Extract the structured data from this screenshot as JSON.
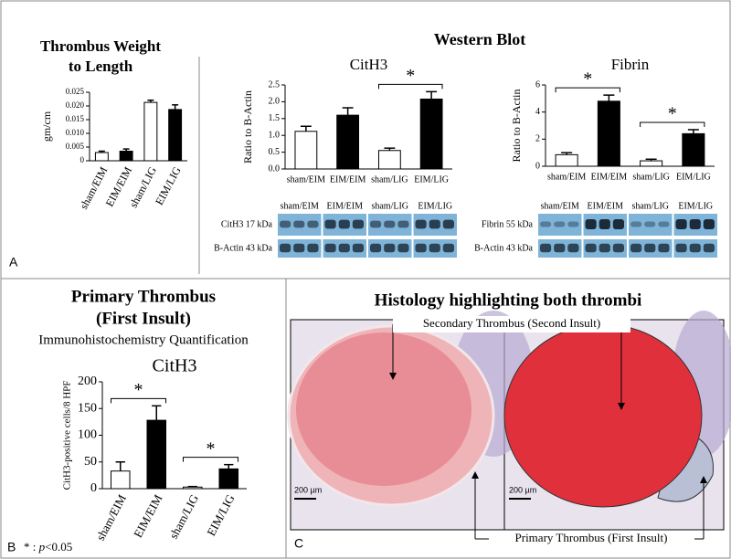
{
  "figure": {
    "panel_a_label": "A",
    "panel_b_label": "B",
    "panel_c_label": "C",
    "western_title": "Western Blot",
    "panel_b_title_lines": [
      "Primary Thrombus",
      "(First Insult)"
    ],
    "panel_b_subtitle": "Immunohistochemistry Quantification",
    "footnote": {
      "star": "* :",
      "p": "p",
      "rest": "<0.05"
    },
    "blots": [
      {
        "lanes": [
          "sham/EIM",
          "EIM/EIM",
          "sham/LIG",
          "EIM/LIG"
        ],
        "rows": [
          "CitH3 17 kDa",
          "B-Actin 43 kDa"
        ]
      },
      {
        "lanes": [
          "sham/EIM",
          "EIM/EIM",
          "sham/LIG",
          "EIM/LIG"
        ],
        "rows": [
          "Fibrin 55 kDa",
          "B-Actin 43 kDa"
        ]
      }
    ],
    "histology": {
      "title": "Histology highlighting both thrombi",
      "secondary": "Secondary Thrombus (Second Insult)",
      "primary": "Primary Thrombus (First Insult)",
      "scale_bars": [
        "200 µm",
        "200 µm"
      ]
    }
  },
  "chart_data": [
    {
      "type": "bar",
      "title": [
        "Thrombus Weight",
        "to Length"
      ],
      "y_label": "gm/cm",
      "categories": [
        "sham/EIM",
        "EIM/EIM",
        "sham/LIG",
        "EIM/LIG"
      ],
      "values": [
        0.003,
        0.0035,
        0.0213,
        0.0187
      ],
      "errors": [
        0.0005,
        0.0008,
        0.0008,
        0.0017
      ],
      "colors": [
        "#ffffff",
        "#000000",
        "#ffffff",
        "#000000"
      ],
      "ylim": [
        0,
        0.025
      ],
      "yticks": [
        0,
        0.005,
        {
          "value": 0.01,
          "label": "0.010"
        },
        0.015,
        {
          "value": 0.02,
          "label": "0.020"
        },
        0.025
      ],
      "rotate_labels": true,
      "significance": []
    },
    {
      "type": "bar",
      "title": [
        "CitH3"
      ],
      "y_label": "Ratio to B-Actin",
      "categories": [
        "sham/EIM",
        "EIM/EIM",
        "sham/LIG",
        "EIM/LIG"
      ],
      "values": [
        1.12,
        1.6,
        0.55,
        2.08
      ],
      "errors": [
        0.15,
        0.22,
        0.07,
        0.22
      ],
      "colors": [
        "#ffffff",
        "#000000",
        "#ffffff",
        "#000000"
      ],
      "ylim": [
        0,
        2.5
      ],
      "yticks": [
        {
          "value": 0,
          "label": "0.0"
        },
        0.5,
        {
          "value": 1,
          "label": "1.0"
        },
        1.5,
        {
          "value": 2,
          "label": "2.0"
        },
        2.5
      ],
      "rotate_labels": false,
      "significance": [
        {
          "categories": [
            2,
            3
          ],
          "label": "*"
        }
      ]
    },
    {
      "type": "bar",
      "title": [
        "Fibrin"
      ],
      "y_label": "Ratio to B-Actin",
      "categories": [
        "sham/EIM",
        "EIM/EIM",
        "sham/LIG",
        "EIM/LIG"
      ],
      "values": [
        0.85,
        4.8,
        0.4,
        2.4
      ],
      "errors": [
        0.15,
        0.45,
        0.12,
        0.3
      ],
      "colors": [
        "#ffffff",
        "#000000",
        "#ffffff",
        "#000000"
      ],
      "ylim": [
        0,
        6
      ],
      "yticks": [
        0,
        2,
        4,
        6
      ],
      "rotate_labels": false,
      "significance": [
        {
          "categories": [
            0,
            1
          ],
          "label": "*"
        },
        {
          "categories": [
            2,
            3
          ],
          "label": "*"
        }
      ]
    },
    {
      "type": "bar",
      "title": [
        "CitH3"
      ],
      "y_label": "CitH3-positive cells/8 HPF",
      "categories": [
        "sham/EIM",
        "EIM/EIM",
        "sham/LIG",
        "EIM/LIG"
      ],
      "values": [
        33,
        128,
        3,
        37
      ],
      "errors": [
        17,
        27,
        1,
        8
      ],
      "colors": [
        "#ffffff",
        "#000000",
        "#ffffff",
        "#000000"
      ],
      "ylim": [
        0,
        200
      ],
      "yticks": [
        0,
        50,
        100,
        150,
        200
      ],
      "rotate_labels": true,
      "significance": [
        {
          "categories": [
            0,
            1
          ],
          "label": "*"
        },
        {
          "categories": [
            2,
            3
          ],
          "label": "*"
        }
      ]
    }
  ]
}
